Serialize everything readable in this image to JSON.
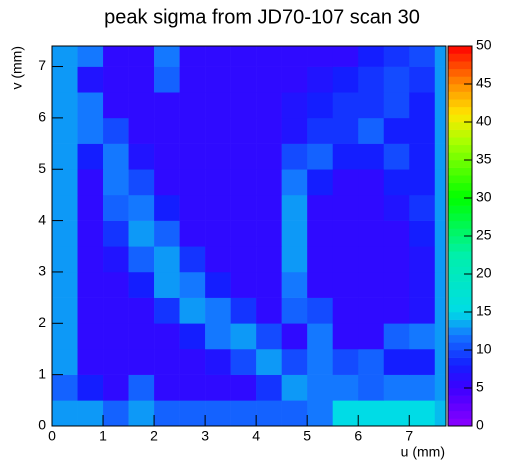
{
  "chart_data": {
    "type": "heatmap",
    "title": "peak sigma from JD70-107 scan 30",
    "x_label": "u (mm)",
    "y_label": "v (mm)",
    "xlim": [
      0,
      7.72
    ],
    "ylim": [
      0,
      7.4
    ],
    "zlim": [
      0,
      50
    ],
    "xticks": [
      0,
      1,
      2,
      3,
      4,
      5,
      6,
      7
    ],
    "yticks": [
      0,
      1,
      2,
      3,
      4,
      5,
      6,
      7
    ],
    "zticks": [
      0,
      5,
      10,
      15,
      20,
      25,
      30,
      35,
      40,
      45,
      50
    ],
    "xedges": [
      0,
      0.5,
      1,
      1.5,
      2,
      2.5,
      3,
      3.5,
      4,
      4.5,
      5,
      5.5,
      6,
      6.5,
      7,
      7.5,
      7.72
    ],
    "yedges": [
      0,
      0.5,
      1,
      1.5,
      2,
      2.5,
      3,
      3.5,
      4,
      4.5,
      5,
      5.5,
      6,
      6.5,
      7,
      7.4
    ],
    "z": [
      [
        13,
        13,
        11,
        13,
        11,
        11,
        11,
        11,
        11,
        11,
        12,
        15,
        15,
        15,
        15,
        14
      ],
      [
        11,
        8,
        6,
        11,
        6,
        6,
        6,
        6,
        9,
        13,
        12,
        12,
        11,
        12,
        12,
        13
      ],
      [
        13,
        6,
        6,
        6,
        6,
        6,
        7,
        10,
        13,
        10,
        12,
        10,
        11,
        8,
        8,
        13
      ],
      [
        13,
        6,
        6,
        6,
        6,
        8,
        12,
        13,
        10,
        6,
        12,
        6,
        6,
        11,
        12,
        13
      ],
      [
        13,
        6,
        6,
        6,
        9,
        13,
        12,
        9,
        6,
        11,
        10,
        6,
        6,
        6,
        7,
        13
      ],
      [
        13,
        6,
        6,
        8,
        13,
        12,
        8,
        6,
        6,
        12,
        6,
        6,
        6,
        6,
        7,
        13
      ],
      [
        13,
        6,
        7,
        11,
        13,
        9,
        6,
        6,
        6,
        13,
        6,
        6,
        6,
        6,
        7,
        13
      ],
      [
        13,
        6,
        9,
        13,
        11,
        6,
        6,
        6,
        6,
        13,
        6,
        6,
        6,
        6,
        8,
        13
      ],
      [
        13,
        6,
        11,
        12,
        8,
        6,
        6,
        6,
        6,
        13,
        6,
        6,
        6,
        7,
        9,
        13
      ],
      [
        13,
        6,
        12,
        10,
        6,
        6,
        6,
        6,
        6,
        12,
        8,
        6,
        6,
        8,
        8,
        13
      ],
      [
        13,
        8,
        12,
        7,
        6,
        6,
        6,
        6,
        6,
        10,
        11,
        8,
        8,
        10,
        8,
        13
      ],
      [
        13,
        12,
        10,
        6,
        6,
        6,
        6,
        6,
        6,
        7,
        9,
        9,
        11,
        8,
        8,
        13
      ],
      [
        13,
        12,
        6,
        6,
        6,
        6,
        6,
        6,
        6,
        7,
        8,
        9,
        9,
        10,
        8,
        13
      ],
      [
        13,
        7,
        6,
        6,
        11,
        6,
        6,
        6,
        6,
        6,
        7,
        8,
        9,
        10,
        9,
        13
      ],
      [
        13,
        12,
        6,
        6,
        12,
        6,
        6,
        6,
        6,
        6,
        6,
        6,
        8,
        9,
        10,
        13
      ]
    ]
  }
}
